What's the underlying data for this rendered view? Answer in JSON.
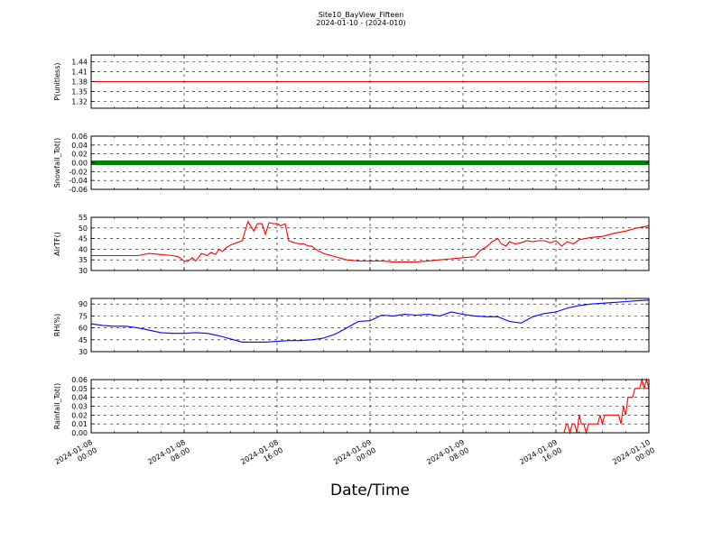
{
  "title": "Site10_BayView_Fifteen",
  "subtitle": "2024-01-10 - (2024-010)",
  "xlabel": "Date/Time",
  "colors": {
    "red": "#ff0000",
    "green": "#008000",
    "blue": "#0000ff"
  },
  "chart_data": {
    "type": "line",
    "title": "Site10_BayView_Fifteen",
    "subtitle": "2024-01-10 - (2024-010)",
    "xlabel": "Date/Time",
    "x_range": [
      "2024-01-08 00:00",
      "2024-01-10 00:00"
    ],
    "x_ticks": [
      {
        "line1": "2024-01-08",
        "line2": "00:00",
        "hour": 0
      },
      {
        "line1": "2024-01-08",
        "line2": "08:00",
        "hour": 8
      },
      {
        "line1": "2024-01-08",
        "line2": "16:00",
        "hour": 16
      },
      {
        "line1": "2024-01-09",
        "line2": "00:00",
        "hour": 24
      },
      {
        "line1": "2024-01-09",
        "line2": "08:00",
        "hour": 32
      },
      {
        "line1": "2024-01-09",
        "line2": "16:00",
        "hour": 40
      },
      {
        "line1": "2024-01-10",
        "line2": "00:00",
        "hour": 48
      }
    ],
    "grid": true,
    "panels": [
      {
        "ylabel": "P(unitless)",
        "ylim": [
          1.3,
          1.46
        ],
        "yticks": [
          1.32,
          1.35,
          1.38,
          1.41,
          1.44
        ],
        "tick_decimals": 2,
        "color": "#ff0000",
        "marker": false,
        "series": [
          {
            "hours": [
              0,
              48
            ],
            "values": [
              1.38,
              1.38
            ]
          }
        ]
      },
      {
        "ylabel": "Snowfall_Tot()",
        "ylim": [
          -0.06,
          0.06
        ],
        "yticks": [
          -0.06,
          -0.04,
          -0.02,
          0.0,
          0.02,
          0.04,
          0.06
        ],
        "tick_decimals": 2,
        "color": "#008000",
        "marker": true,
        "series": [
          {
            "hours": [
              0,
              48
            ],
            "values": [
              0,
              0
            ]
          }
        ]
      },
      {
        "ylabel": "AirTF()",
        "ylim": [
          30,
          55
        ],
        "yticks": [
          30,
          35,
          40,
          45,
          50,
          55
        ],
        "tick_decimals": 0,
        "color": "#ff0000",
        "marker": false,
        "series": [
          {
            "hours": [
              0,
              2,
              4,
              5,
              6,
              7,
              7.5,
              8,
              8.3,
              8.7,
              9,
              9.5,
              10,
              10.3,
              10.7,
              11,
              11.3,
              11.7,
              12,
              12.5,
              13,
              13.5,
              14,
              14.3,
              14.7,
              15,
              15.3,
              15.7,
              16,
              16.3,
              16.7,
              17,
              17.5,
              18,
              18.3,
              18.7,
              19,
              19.3,
              20,
              22,
              23,
              24,
              25,
              26,
              27,
              28,
              29,
              30,
              31,
              32,
              33,
              33.5,
              34,
              34.5,
              35,
              35.3,
              35.7,
              36,
              36.5,
              37,
              37.5,
              38,
              38.5,
              39,
              39.5,
              40,
              40.5,
              41,
              41.5,
              42,
              43,
              44,
              45,
              46,
              47,
              48
            ],
            "values": [
              37,
              37,
              37,
              38,
              37.5,
              37,
              36.5,
              34.5,
              34.2,
              36,
              34.5,
              38,
              37,
              38.5,
              37.5,
              40,
              39,
              41,
              42,
              43,
              44,
              53,
              48.5,
              52,
              52,
              47,
              52.5,
              52,
              52,
              51,
              52,
              44,
              43,
              42.5,
              42.5,
              41.5,
              41.5,
              40,
              38,
              35,
              34.5,
              34.5,
              34.5,
              34,
              34,
              34,
              34.5,
              35,
              35.5,
              36,
              36.5,
              39.5,
              41,
              43.5,
              45,
              42.5,
              41.5,
              43.5,
              42.5,
              43,
              44,
              43.5,
              44,
              44,
              43,
              44,
              41.5,
              43.5,
              42.5,
              44.5,
              45.5,
              46,
              47.5,
              48.5,
              50,
              51
            ]
          }
        ]
      },
      {
        "ylabel": "RH(%)",
        "ylim": [
          30,
          97
        ],
        "yticks": [
          30,
          45,
          60,
          75,
          90
        ],
        "tick_decimals": 0,
        "color": "#0000ff",
        "marker": false,
        "series": [
          {
            "hours": [
              0,
              1,
              2,
              3,
              4,
              5,
              6,
              7,
              8,
              9,
              10,
              11,
              12,
              13,
              14,
              15,
              16,
              17,
              18,
              19,
              20,
              21,
              22,
              23,
              24,
              25,
              26,
              27,
              28,
              29,
              30,
              31,
              32,
              33,
              34,
              35,
              36,
              37,
              38,
              39,
              40,
              41,
              42,
              43,
              44,
              45,
              46,
              47,
              48
            ],
            "values": [
              65,
              63,
              62,
              62,
              60,
              57,
              54,
              53,
              53,
              54,
              53,
              50,
              46,
              42,
              42,
              42,
              43,
              44,
              44,
              45,
              47,
              52,
              60,
              68,
              69,
              76,
              75,
              77,
              76,
              77,
              75,
              80,
              77,
              75,
              74,
              74,
              68,
              66,
              74,
              78,
              80,
              85,
              88,
              90,
              91,
              92,
              93,
              94,
              95
            ]
          }
        ]
      },
      {
        "ylabel": "Rainfall_Tot()",
        "ylim": [
          0,
          0.06
        ],
        "yticks": [
          0.0,
          0.01,
          0.02,
          0.03,
          0.04,
          0.05,
          0.06
        ],
        "tick_decimals": 2,
        "color": "#ff0000",
        "marker": false,
        "series": [
          {
            "hours": [
              0,
              40.7,
              40.9,
              41,
              41.2,
              41.4,
              41.6,
              41.8,
              42,
              42.2,
              42.4,
              42.6,
              42.8,
              43,
              43.2,
              43.4,
              43.6,
              43.8,
              44,
              44.2,
              44.4,
              44.6,
              44.8,
              45,
              45.2,
              45.4,
              45.6,
              45.8,
              46,
              46.2,
              46.4,
              46.6,
              46.8,
              47,
              47.2,
              47.4,
              47.6,
              47.8,
              48
            ],
            "values": [
              0,
              0,
              0.01,
              0.01,
              0,
              0.01,
              0.01,
              0,
              0.02,
              0.01,
              0.01,
              0,
              0.01,
              0.01,
              0.01,
              0.01,
              0.01,
              0.02,
              0.01,
              0.02,
              0.02,
              0.02,
              0.02,
              0.02,
              0.02,
              0.02,
              0.01,
              0.03,
              0.02,
              0.04,
              0.04,
              0.04,
              0.05,
              0.05,
              0.05,
              0.06,
              0.05,
              0.06,
              0.05
            ]
          }
        ]
      }
    ]
  }
}
